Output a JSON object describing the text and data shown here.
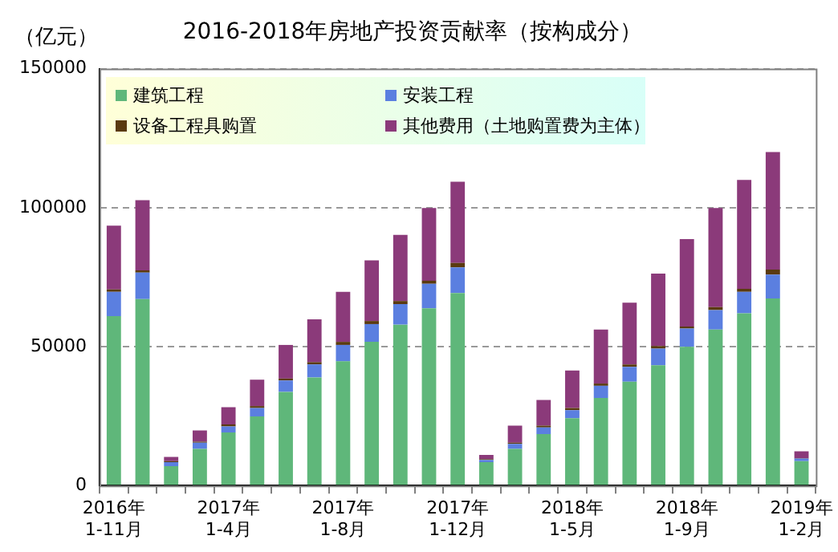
{
  "chart_data": {
    "type": "bar",
    "title": "2016-2018年房地产投资贡献率（按构成分）",
    "ylabel": "（亿元）",
    "categories": [
      "2016年 1-11月",
      null,
      null,
      null,
      "2017年 1-4月",
      null,
      null,
      null,
      "2017年 1-8月",
      null,
      null,
      null,
      "2017年 1-12月",
      null,
      null,
      null,
      "2018年 1-5月",
      null,
      null,
      null,
      "2018年 1-9月",
      null,
      null,
      null,
      "2019年 1-2月"
    ],
    "series": [
      {
        "name": "建筑工程",
        "color": "#5fb77a",
        "values": [
          61000,
          67100,
          7000,
          13200,
          19100,
          24900,
          33700,
          38900,
          44700,
          51700,
          57900,
          63800,
          69300,
          8400,
          13200,
          18500,
          24200,
          31500,
          37400,
          43300,
          49900,
          56100,
          62000,
          67300,
          8800
        ]
      },
      {
        "name": "安装工程",
        "color": "#5b7fe0",
        "values": [
          8700,
          9500,
          1400,
          2200,
          2200,
          3000,
          4100,
          4700,
          5900,
          6400,
          7400,
          8800,
          9200,
          800,
          1800,
          2400,
          2900,
          4400,
          5300,
          6000,
          6600,
          7000,
          7700,
          8600,
          900
        ]
      },
      {
        "name": "设备工程具购置",
        "color": "#5a3a10",
        "values": [
          900,
          800,
          400,
          400,
          700,
          700,
          700,
          800,
          1100,
          1100,
          1100,
          1100,
          1600,
          300,
          400,
          700,
          800,
          800,
          900,
          900,
          700,
          1100,
          1100,
          1800,
          200
        ]
      },
      {
        "name": "其他费用（土地购置费为主体）",
        "color": "#8b3a7a",
        "values": [
          22900,
          25300,
          1500,
          4000,
          6200,
          9500,
          12100,
          15400,
          18000,
          21800,
          23800,
          26200,
          29200,
          1500,
          6200,
          9200,
          13500,
          19400,
          22200,
          26100,
          31500,
          35700,
          39200,
          42300,
          2400
        ]
      }
    ],
    "stacked": true,
    "ylim": [
      0,
      150000
    ],
    "yticks": [
      0,
      50000,
      100000,
      150000
    ],
    "grid": "y",
    "legend": "top left"
  }
}
